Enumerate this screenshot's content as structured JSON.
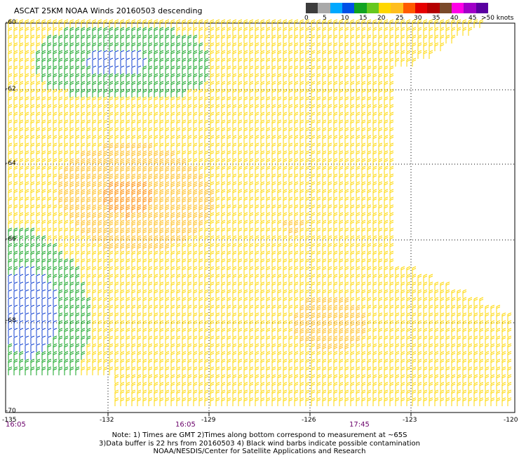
{
  "title": "ASCAT 25KM NOAA Winds 20160503 descending",
  "colorbar": {
    "units": ">50 knots",
    "labels": [
      "0",
      "5",
      "10",
      "15",
      "20",
      "25",
      "30",
      "35",
      "40",
      "45"
    ],
    "colors": [
      "#3c3c3c",
      "#a9a9a9",
      "#00a8ff",
      "#0050e6",
      "#11a320",
      "#66c81e",
      "#ffd700",
      "#ffbe1e",
      "#ff5a00",
      "#e60000",
      "#b40000",
      "#7a4a2a",
      "#ff00e6",
      "#a000c8",
      "#5a00a0"
    ]
  },
  "map": {
    "lat_labels": [
      "-60",
      "-62",
      "-64",
      "-66",
      "-68",
      "-70"
    ],
    "lon_labels": [
      "-135",
      "-132",
      "-129",
      "-126",
      "-123",
      "-120"
    ],
    "time_labels": [
      "16:05",
      "16:05",
      "17:45"
    ],
    "wind_colors": {
      "lt15": "#1040d0",
      "lt20": "#11a320",
      "lt25": "#ffd700",
      "lt30": "#ffbe1e",
      "lt35": "#ff8c00",
      "ge35": "#e60000"
    }
  },
  "notes": [
    "Note: 1) Times are GMT 2)Times along bottom correspond to measurement at ~65S",
    "3)Data buffer is 22 hrs from 20160503 4) Black wind barbs indicate possible contamination",
    "NOAA/NESDIS/Center for Satellite Applications and Research"
  ]
}
